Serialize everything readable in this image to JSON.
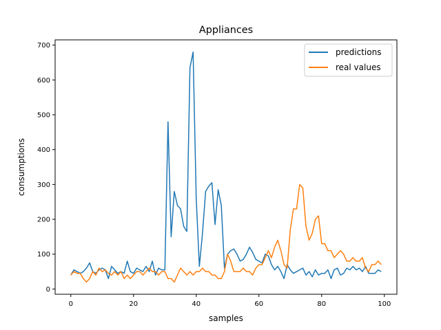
{
  "chart_data": {
    "type": "line",
    "title": "Appliances",
    "xlabel": "samples",
    "ylabel": "consumptions",
    "xlim": [
      -5,
      104
    ],
    "ylim": [
      -15,
      715
    ],
    "xticks": [
      0,
      20,
      40,
      60,
      80,
      100
    ],
    "yticks": [
      0,
      100,
      200,
      300,
      400,
      500,
      600,
      700
    ],
    "xtick_labels": [
      "0",
      "20",
      "40",
      "60",
      "80",
      "100"
    ],
    "ytick_labels": [
      "0",
      "100",
      "200",
      "300",
      "400",
      "500",
      "600",
      "700"
    ],
    "grid": false,
    "legend_position": "top-right",
    "series": [
      {
        "name": "predictions",
        "color": "#1f77b4",
        "values": [
          40,
          55,
          50,
          45,
          50,
          60,
          75,
          50,
          45,
          55,
          60,
          55,
          30,
          65,
          55,
          45,
          50,
          45,
          80,
          50,
          45,
          60,
          55,
          50,
          65,
          50,
          80,
          40,
          60,
          55,
          55,
          480,
          150,
          280,
          240,
          230,
          180,
          165,
          635,
          680,
          260,
          65,
          160,
          280,
          295,
          305,
          185,
          285,
          240,
          60,
          100,
          110,
          115,
          100,
          80,
          85,
          100,
          120,
          105,
          85,
          80,
          75,
          100,
          95,
          70,
          55,
          65,
          50,
          30,
          70,
          55,
          45,
          50,
          55,
          60,
          40,
          50,
          35,
          55,
          40,
          45,
          45,
          55,
          30,
          55,
          60,
          40,
          45,
          60,
          55,
          65,
          55,
          60,
          50,
          65,
          45,
          45,
          45,
          55,
          50
        ]
      },
      {
        "name": "real values",
        "color": "#ff7f0e",
        "values": [
          40,
          50,
          45,
          45,
          30,
          20,
          30,
          50,
          40,
          60,
          50,
          55,
          45,
          40,
          50,
          40,
          50,
          30,
          40,
          30,
          40,
          50,
          50,
          40,
          50,
          60,
          50,
          50,
          40,
          50,
          50,
          30,
          30,
          20,
          40,
          60,
          50,
          40,
          50,
          40,
          50,
          50,
          60,
          50,
          50,
          40,
          40,
          30,
          30,
          50,
          100,
          80,
          50,
          50,
          50,
          60,
          50,
          50,
          40,
          60,
          70,
          70,
          90,
          110,
          90,
          120,
          140,
          110,
          70,
          60,
          170,
          230,
          230,
          300,
          290,
          180,
          140,
          160,
          200,
          210,
          130,
          130,
          110,
          110,
          90,
          100,
          110,
          100,
          80,
          80,
          90,
          80,
          80,
          90,
          60,
          50,
          70,
          70,
          80,
          70
        ]
      }
    ]
  }
}
